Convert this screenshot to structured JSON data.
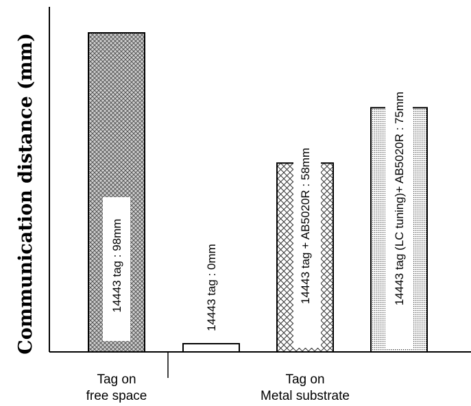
{
  "chart_data": {
    "type": "bar",
    "title": "",
    "xlabel": "",
    "ylabel": "Communication distance (mm)",
    "ylim": [
      0,
      98
    ],
    "grid": false,
    "groups": [
      {
        "lines": [
          "Tag on",
          "free space"
        ],
        "bars": [
          0
        ]
      },
      {
        "lines": [
          "Tag on",
          "Metal substrate"
        ],
        "bars": [
          1,
          2,
          3
        ]
      }
    ],
    "bars": [
      {
        "label": "14443 tag : 98mm",
        "value": 98,
        "pattern": "fine-crosshatch"
      },
      {
        "label": "14443 tag : 0mm",
        "value": 0,
        "pattern": "none"
      },
      {
        "label": "14443 tag + AB5020R : 58mm",
        "value": 58,
        "pattern": "diagonal-crosshatch"
      },
      {
        "label": "14443 tag (LC tuning)+ AB5020R : 75mm",
        "value": 75,
        "pattern": "dots"
      }
    ]
  }
}
